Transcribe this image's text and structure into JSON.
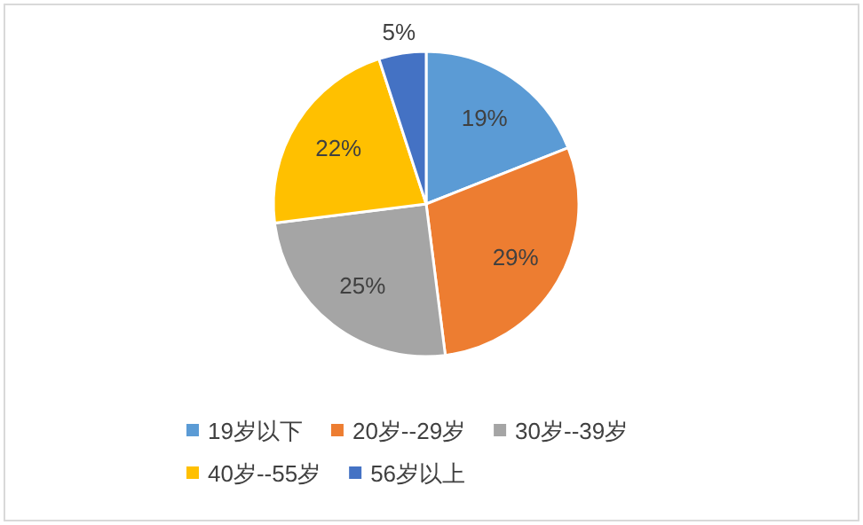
{
  "chart_data": {
    "type": "pie",
    "categories": [
      "19岁以下",
      "20岁--29岁",
      "30岁--39岁",
      "40岁--55岁",
      "56岁以上"
    ],
    "values": [
      19,
      29,
      25,
      22,
      5
    ],
    "colors": [
      "#5b9bd5",
      "#ed7d31",
      "#a5a5a5",
      "#ffc000",
      "#4472c4"
    ],
    "value_labels": [
      "19%",
      "29%",
      "25%",
      "22%",
      "5%"
    ],
    "legend": "bottom"
  }
}
